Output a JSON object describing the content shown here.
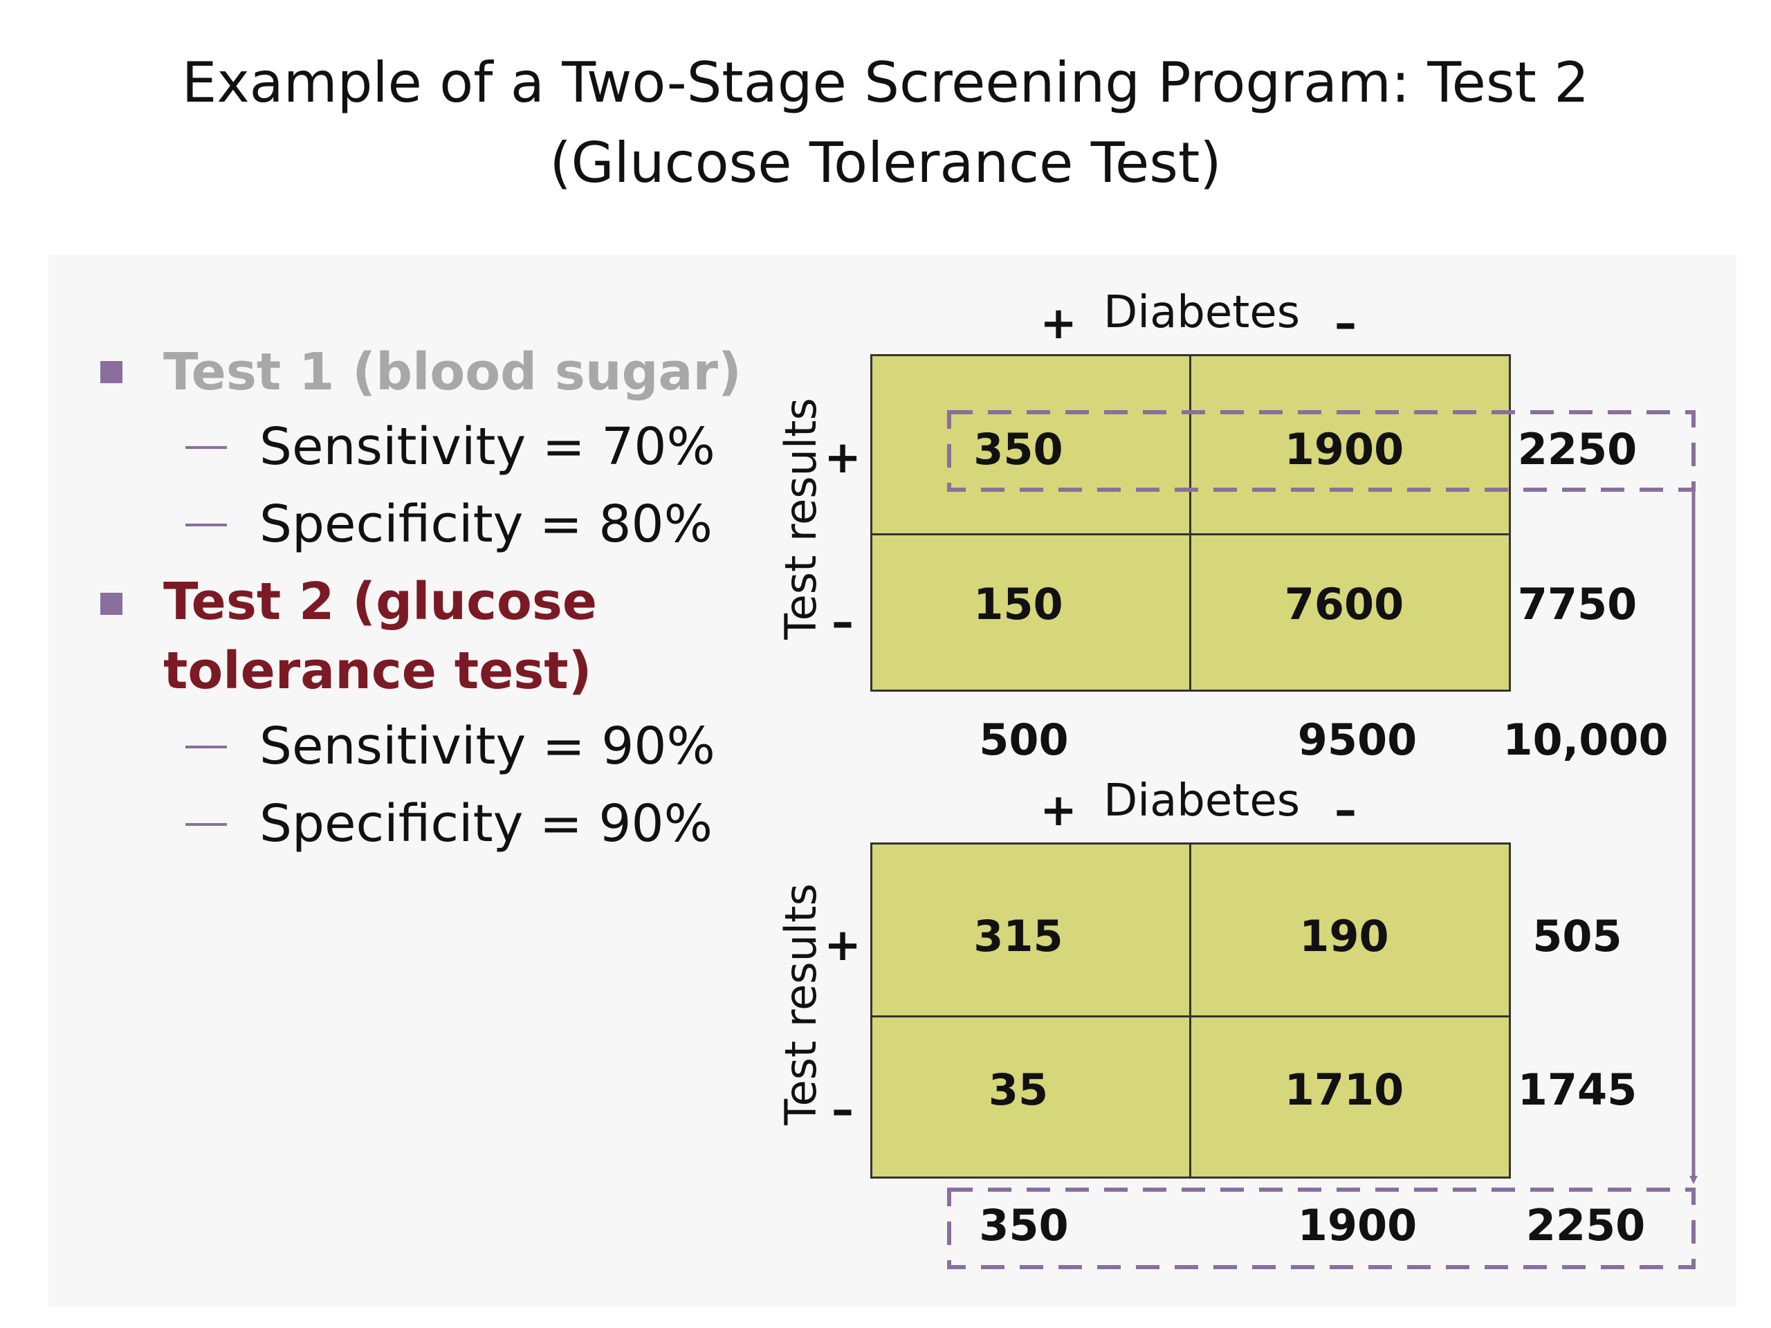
{
  "title": {
    "line1": "Example of a Two-Stage Screening Program: Test 2",
    "line2": "(Glucose Tolerance Test)"
  },
  "bullets": {
    "test1": {
      "label": "Test 1 (blood sugar)",
      "color": "#a8a8a8",
      "items": [
        "Sensitivity = 70%",
        "Specificity = 80%"
      ]
    },
    "test2": {
      "label_line1": "Test 2 (glucose",
      "label_line2": "tolerance test)",
      "color": "#7b1a24",
      "items": [
        "Sensitivity = 90%",
        "Specificity = 90%"
      ]
    }
  },
  "table1": {
    "header": "Diabetes",
    "plus": "+",
    "minus": "–",
    "row_label": "Test results",
    "cells": [
      [
        "350",
        "1900"
      ],
      [
        "150",
        "7600"
      ]
    ],
    "row_totals": [
      "2250",
      "7750"
    ],
    "col_totals": [
      "500",
      "9500"
    ],
    "grand_total": "10,000"
  },
  "table2": {
    "header": "Diabetes",
    "plus": "+",
    "minus": "–",
    "row_label": "Test results",
    "cells": [
      [
        "315",
        "190"
      ],
      [
        "35",
        "1710"
      ]
    ],
    "row_totals": [
      "505",
      "1745"
    ],
    "col_totals": [
      "350",
      "1900"
    ],
    "grand_total": "2250"
  },
  "colors": {
    "cell_fill": "#d6d67a",
    "accent_purple": "#8a6f9e"
  }
}
